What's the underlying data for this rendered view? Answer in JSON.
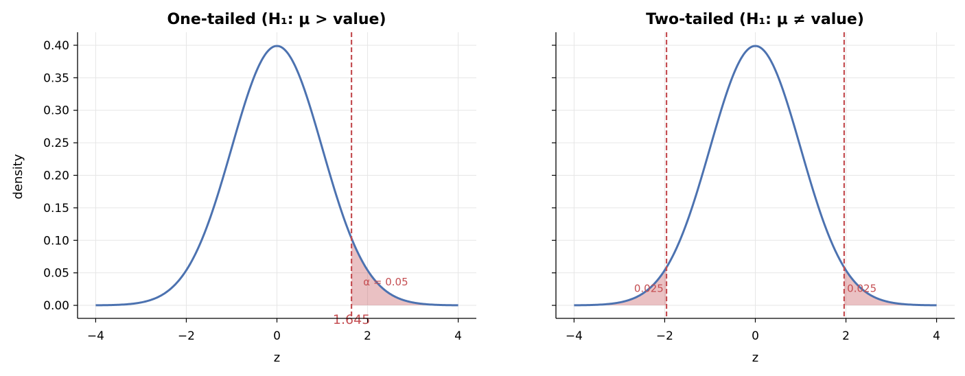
{
  "chart_data": [
    {
      "type": "line",
      "title": "One-tailed (H₁: μ > value)",
      "xlabel": "z",
      "ylabel": "density",
      "xlim": [
        -4.4,
        4.4
      ],
      "ylim": [
        -0.02,
        0.42
      ],
      "xticks": [
        -4,
        -2,
        0,
        2,
        4
      ],
      "xtick_labels": [
        "−4",
        "−2",
        "0",
        "2",
        "4"
      ],
      "yticks": [
        0.0,
        0.05,
        0.1,
        0.15,
        0.2,
        0.25,
        0.3,
        0.35,
        0.4
      ],
      "ytick_labels": [
        "0.00",
        "0.05",
        "0.10",
        "0.15",
        "0.20",
        "0.25",
        "0.30",
        "0.35",
        "0.40"
      ],
      "grid": true,
      "series": [
        {
          "distribution": "standard normal pdf",
          "x_range": [
            -4,
            4
          ],
          "color": "#4c72b0"
        }
      ],
      "critical_lines": [
        {
          "x": 1.645,
          "color": "#c44e52",
          "label": "1.645"
        }
      ],
      "shaded_regions": [
        {
          "x_from": 1.645,
          "x_to": 4,
          "color": "#c44e52",
          "label": "α = 0.05"
        }
      ]
    },
    {
      "type": "line",
      "title": "Two-tailed (H₁: μ ≠ value)",
      "xlabel": "z",
      "ylabel": "",
      "xlim": [
        -4.4,
        4.4
      ],
      "ylim": [
        -0.02,
        0.42
      ],
      "xticks": [
        -4,
        -2,
        0,
        2,
        4
      ],
      "xtick_labels": [
        "−4",
        "−2",
        "0",
        "2",
        "4"
      ],
      "yticks": [
        0.0,
        0.05,
        0.1,
        0.15,
        0.2,
        0.25,
        0.3,
        0.35,
        0.4
      ],
      "ytick_labels": [],
      "grid": true,
      "series": [
        {
          "distribution": "standard normal pdf",
          "x_range": [
            -4,
            4
          ],
          "color": "#4c72b0"
        }
      ],
      "critical_lines": [
        {
          "x": -1.96,
          "color": "#c44e52"
        },
        {
          "x": 1.96,
          "color": "#c44e52"
        }
      ],
      "shaded_regions": [
        {
          "x_from": -4,
          "x_to": -1.96,
          "color": "#c44e52",
          "label": "0.025"
        },
        {
          "x_from": 1.96,
          "x_to": 4,
          "color": "#c44e52",
          "label": "0.025"
        }
      ]
    }
  ]
}
